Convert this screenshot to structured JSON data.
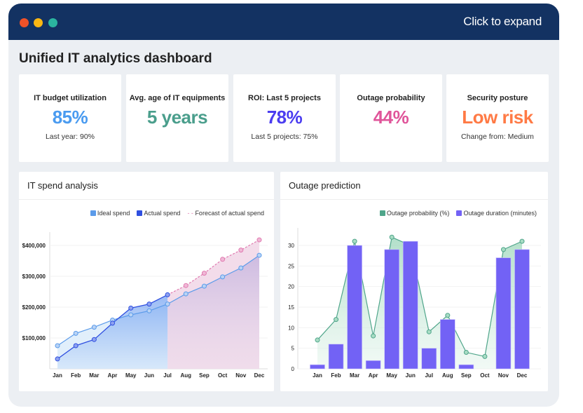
{
  "header": {
    "expand_label": "Click to expand",
    "dots": [
      "#f05228",
      "#fbb713",
      "#2bb5a0"
    ]
  },
  "page_title": "Unified IT analytics dashboard",
  "kpis": [
    {
      "label": "IT budget utilization",
      "value": "85%",
      "sub": "Last year: 90%",
      "color": "#4a9bf0"
    },
    {
      "label": "Avg. age of IT equipments",
      "value": "5 years",
      "sub": "",
      "color": "#4a9e8c"
    },
    {
      "label": "ROI: Last 5 projects",
      "value": "78%",
      "sub": "Last 5 projects: 75%",
      "color": "#4b3df0"
    },
    {
      "label": "Outage probability",
      "value": "44%",
      "sub": "",
      "color": "#e0559a"
    },
    {
      "label": "Security posture",
      "value": "Low risk",
      "sub": "Change from: Medium",
      "color": "#ff7a45"
    }
  ],
  "spend": {
    "title": "IT spend analysis",
    "legend": [
      "Ideal spend",
      "Actual spend",
      "Forecast of actual spend"
    ]
  },
  "outage": {
    "title": "Outage prediction",
    "legend": [
      "Outage probability (%)",
      "Outage duration (minutes)"
    ]
  },
  "chart_data": [
    {
      "type": "line",
      "title": "IT spend analysis",
      "categories": [
        "Jan",
        "Feb",
        "Mar",
        "Apr",
        "May",
        "Jun",
        "Jul",
        "Aug",
        "Sep",
        "Oct",
        "Nov",
        "Dec"
      ],
      "yticks": [
        "$100,000",
        "$200,000",
        "$300,000",
        "$400,000"
      ],
      "ylim": [
        0,
        420000
      ],
      "grid": true,
      "legend": "top-right",
      "series": [
        {
          "name": "Ideal spend",
          "color": "#5b9bea",
          "values": [
            75000,
            115000,
            135000,
            158000,
            175000,
            188000,
            210000,
            243000,
            268000,
            298000,
            327000,
            368000
          ]
        },
        {
          "name": "Actual spend",
          "color": "#2f4fe0",
          "values": [
            32000,
            75000,
            95000,
            148000,
            197000,
            210000,
            240000,
            null,
            null,
            null,
            null,
            null
          ]
        },
        {
          "name": "Forecast of actual spend",
          "color": "#e07ab0",
          "values": [
            null,
            null,
            null,
            null,
            null,
            null,
            240000,
            270000,
            310000,
            355000,
            385000,
            418000
          ]
        }
      ]
    },
    {
      "type": "bar",
      "title": "Outage prediction",
      "categories": [
        "Jan",
        "Feb",
        "Mar",
        "Apr",
        "May",
        "Jun",
        "Jul",
        "Aug",
        "Sep",
        "Oct",
        "Nov",
        "Dec"
      ],
      "yticks": [
        "0",
        "5",
        "10",
        "15",
        "20",
        "25",
        "30"
      ],
      "ylim": [
        0,
        33
      ],
      "grid": true,
      "legend": "top-right",
      "series": [
        {
          "name": "Outage probability (%)",
          "type": "area",
          "color": "#4fa58a",
          "values": [
            7,
            12,
            31,
            8,
            32,
            30,
            9,
            13,
            4,
            3,
            29,
            31
          ]
        },
        {
          "name": "Outage duration (minutes)",
          "type": "bar",
          "color": "#7262f5",
          "values": [
            1,
            6,
            30,
            2,
            29,
            31,
            5,
            12,
            1,
            0,
            27,
            29
          ]
        }
      ]
    }
  ]
}
